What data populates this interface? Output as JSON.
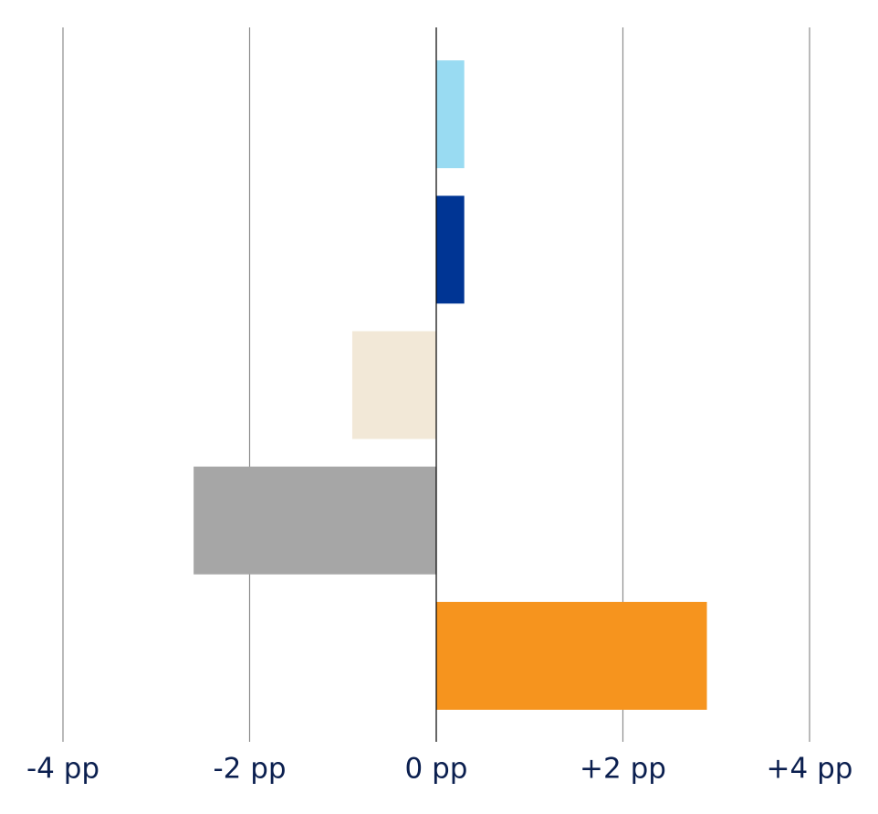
{
  "chart_data": {
    "type": "hbar",
    "categories": [
      null,
      null,
      null,
      null,
      null
    ],
    "values": [
      0.3,
      0.3,
      -0.9,
      -2.6,
      2.9
    ],
    "colors": [
      "#99dbf2",
      "#003594",
      "#f2e8d7",
      "#a6a6a6",
      "#f6941e"
    ],
    "xlim": [
      -4,
      4
    ],
    "xticks": [
      {
        "value": -4,
        "label": "-4 pp"
      },
      {
        "value": -2,
        "label": "-2 pp"
      },
      {
        "value": 0,
        "label": "0 pp"
      },
      {
        "value": 2,
        "label": "+2 pp"
      },
      {
        "value": 4,
        "label": "+4 pp"
      }
    ],
    "grid": true
  }
}
